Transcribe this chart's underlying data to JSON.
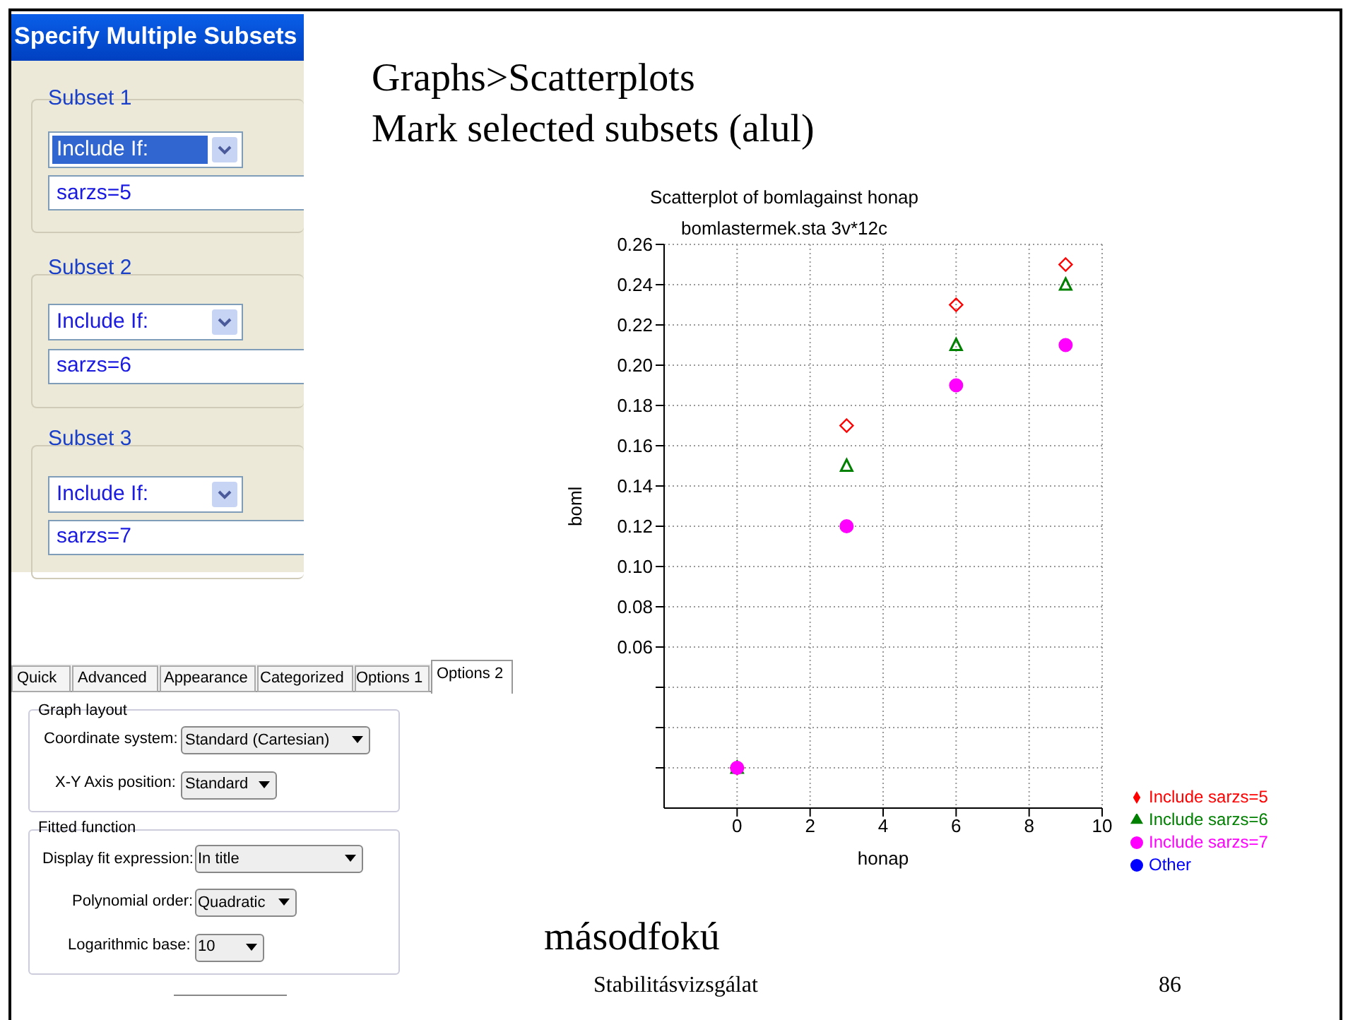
{
  "chart_data": {
    "type": "scatter",
    "title": "Scatterplot of bomlagainst honap",
    "subtitle": "bomlastermek.sta 3v*12c",
    "xlabel": "honap",
    "ylabel": "boml",
    "x": [
      0,
      3,
      6,
      9
    ],
    "series": [
      {
        "name": "Include sarzs=5",
        "color": "#ff0000",
        "marker": "diamond",
        "values": [
          0,
          0.17,
          0.23,
          0.25
        ]
      },
      {
        "name": "Include sarzs=6",
        "color": "#008000",
        "marker": "triangle",
        "values": [
          0,
          0.15,
          0.21,
          0.24
        ]
      },
      {
        "name": "Include sarzs=7",
        "color": "#ff00ff",
        "marker": "circle",
        "values": [
          0,
          0.12,
          0.19,
          0.21
        ]
      },
      {
        "name": "Other",
        "color": "#0000ff",
        "marker": "circle",
        "values": [
          null,
          null,
          null,
          null
        ]
      }
    ],
    "xlim": [
      -2,
      10
    ],
    "xticks": [
      0,
      2,
      4,
      6,
      8,
      10
    ],
    "ylim": [
      -0.02,
      0.26
    ],
    "yticks": [
      {
        "value": 0,
        "label": null
      },
      {
        "value": 0.02,
        "label": null
      },
      {
        "value": 0.04,
        "label": null
      },
      {
        "value": 0.06,
        "label": "0.06"
      },
      {
        "value": 0.08,
        "label": "0.08"
      },
      {
        "value": 0.1,
        "label": "0.10"
      },
      {
        "value": 0.12,
        "label": "0.12"
      },
      {
        "value": 0.14,
        "label": "0.14"
      },
      {
        "value": 0.16,
        "label": "0.16"
      },
      {
        "value": 0.18,
        "label": "0.18"
      },
      {
        "value": 0.2,
        "label": "0.20"
      },
      {
        "value": 0.22,
        "label": "0.22"
      },
      {
        "value": 0.24,
        "label": "0.24"
      },
      {
        "value": 0.26,
        "label": "0.26"
      }
    ],
    "grid": true,
    "legend": "bottom right",
    "annotations": [
      "Graphs>Scatterplots",
      "Mark selected subsets (alul)",
      "másodfokú",
      "Stabilitásvizsgálat",
      "86",
      "Specify Multiple Subsets",
      "Subset 1",
      "Include If:",
      "sarzs=5",
      "Subset 2",
      "Include If:",
      "sarzs=6",
      "Subset 3",
      "Include If:",
      "sarzs=7",
      "Quick",
      "Advanced",
      "Appearance",
      "Categorized",
      "Options 1",
      "Options 2",
      "Graph layout",
      "Coordinate system:",
      "Standard (Cartesian)",
      "X-Y Axis position:",
      "Standard",
      "Fitted function",
      "Display fit expression:",
      "In title",
      "Polynomial order:",
      "Quadratic",
      "Logarithmic base:",
      "10"
    ]
  }
}
